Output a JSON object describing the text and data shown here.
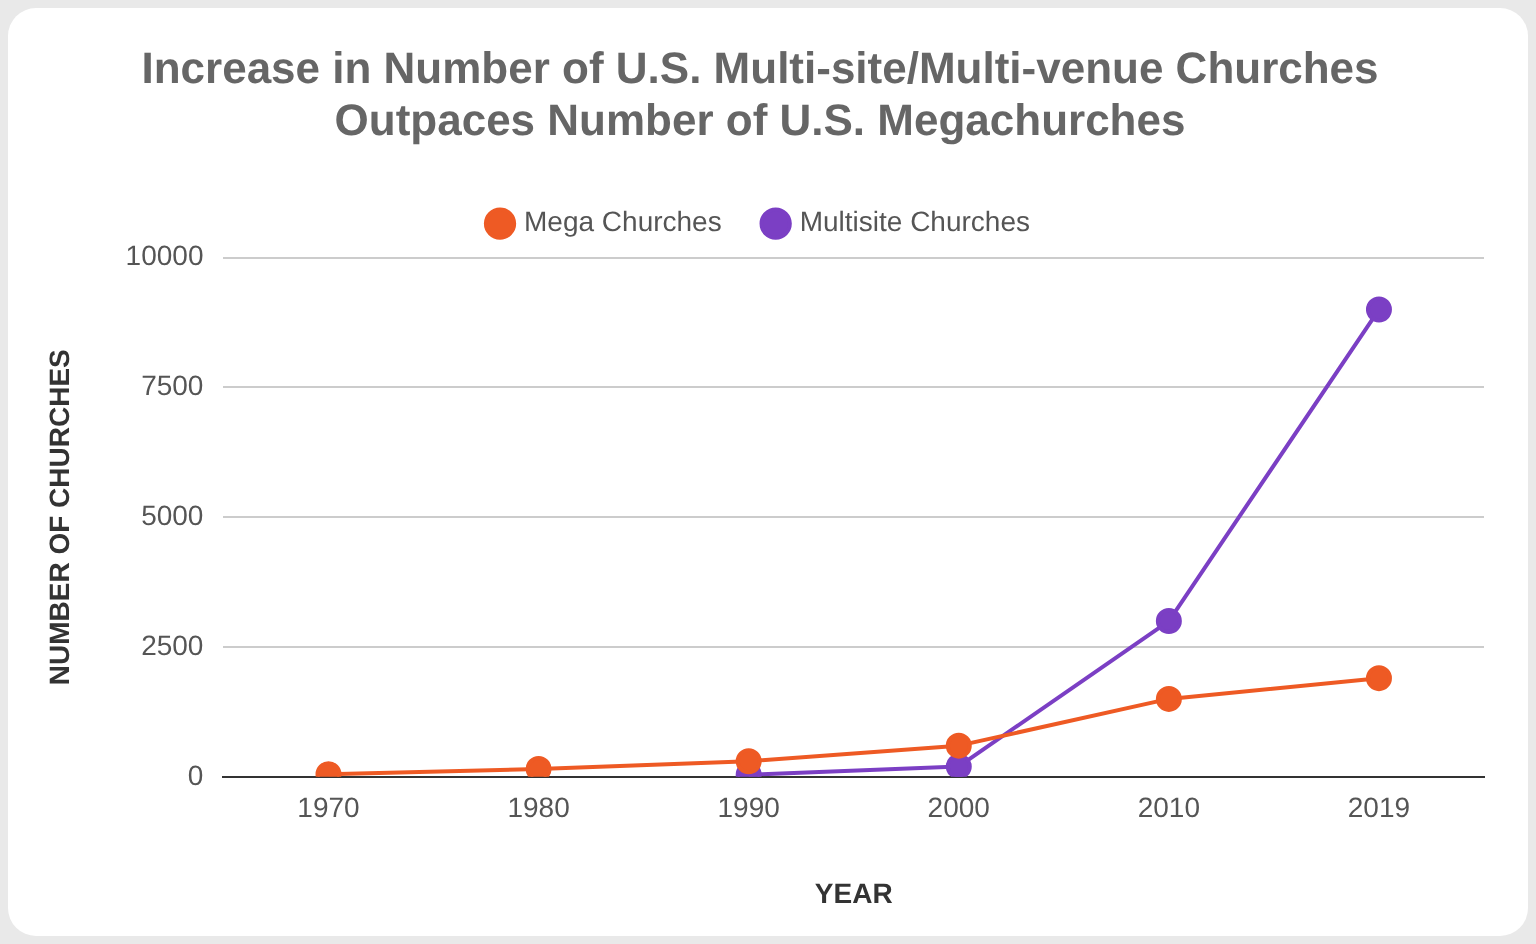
{
  "chart_data": {
    "type": "line",
    "title": "Increase in Number of U.S. Multi-site/Multi-venue Churches Outpaces Number of U.S. Megachurches",
    "xlabel": "YEAR",
    "ylabel": "NUMBER OF CHURCHES",
    "categories": [
      "1970",
      "1980",
      "1990",
      "2000",
      "2010",
      "2019"
    ],
    "series": [
      {
        "name": "Mega Churches",
        "color": "#ee5a24",
        "values": [
          50,
          150,
          300,
          600,
          1500,
          1900
        ]
      },
      {
        "name": "Multisite Churches",
        "color": "#7b3fc4",
        "values": [
          null,
          null,
          40,
          200,
          3000,
          9000
        ]
      }
    ],
    "ylim": [
      0,
      10000
    ],
    "yticks": [
      0,
      2500,
      5000,
      7500,
      10000
    ],
    "grid": "y",
    "legend": "top",
    "marker": "circle",
    "line_style": "solid"
  }
}
